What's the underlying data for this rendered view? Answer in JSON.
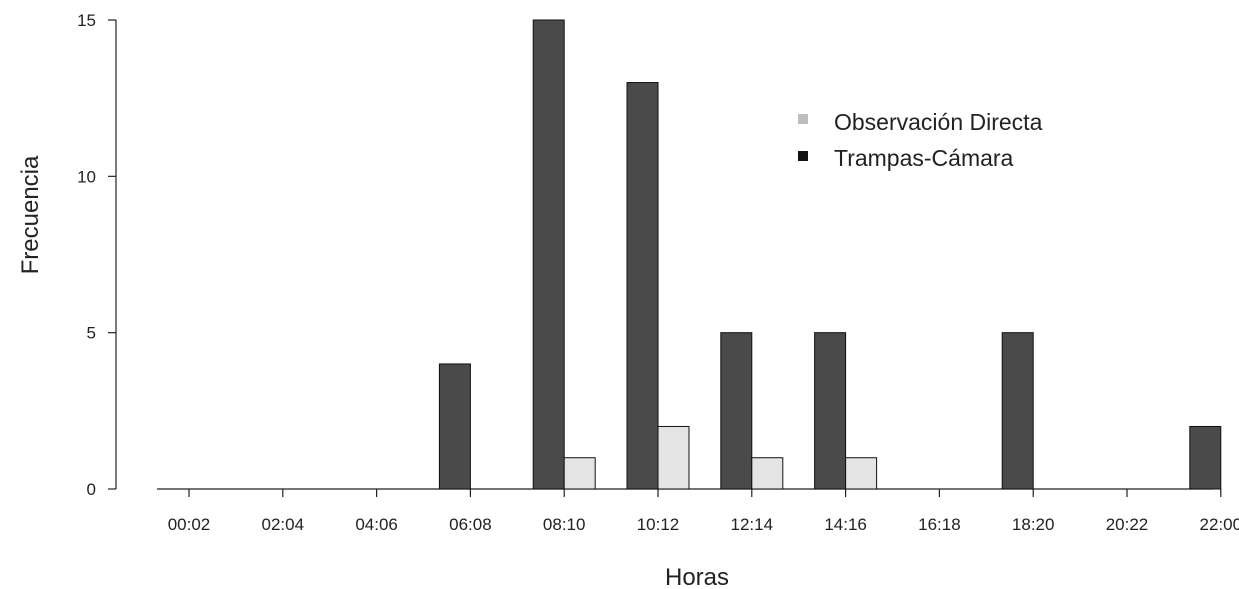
{
  "chart_data": {
    "type": "bar",
    "xlabel": "Horas",
    "ylabel": "Frecuencia",
    "categories": [
      "00:02",
      "02:04",
      "04:06",
      "06:08",
      "08:10",
      "10:12",
      "12:14",
      "14:16",
      "16:18",
      "18:20",
      "20:22",
      "22:00"
    ],
    "series": [
      {
        "name": "Trampas-Cámara",
        "values": [
          0,
          0,
          0,
          4,
          15,
          13,
          5,
          5,
          0,
          5,
          0,
          2
        ],
        "color": "#4a4a4a"
      },
      {
        "name": "Observación Directa",
        "values": [
          0,
          0,
          0,
          0,
          1,
          2,
          1,
          1,
          0,
          0,
          0,
          0
        ],
        "color": "#e4e4e4"
      }
    ],
    "yticks": [
      0,
      5,
      10,
      15
    ],
    "ylim": [
      0,
      15
    ],
    "grid": false,
    "legend": {
      "position": "top-right",
      "entries": [
        {
          "label": "Observación Directa",
          "color": "#bdbdbd"
        },
        {
          "label": "Trampas-Cámara",
          "color": "#111111"
        }
      ]
    }
  }
}
